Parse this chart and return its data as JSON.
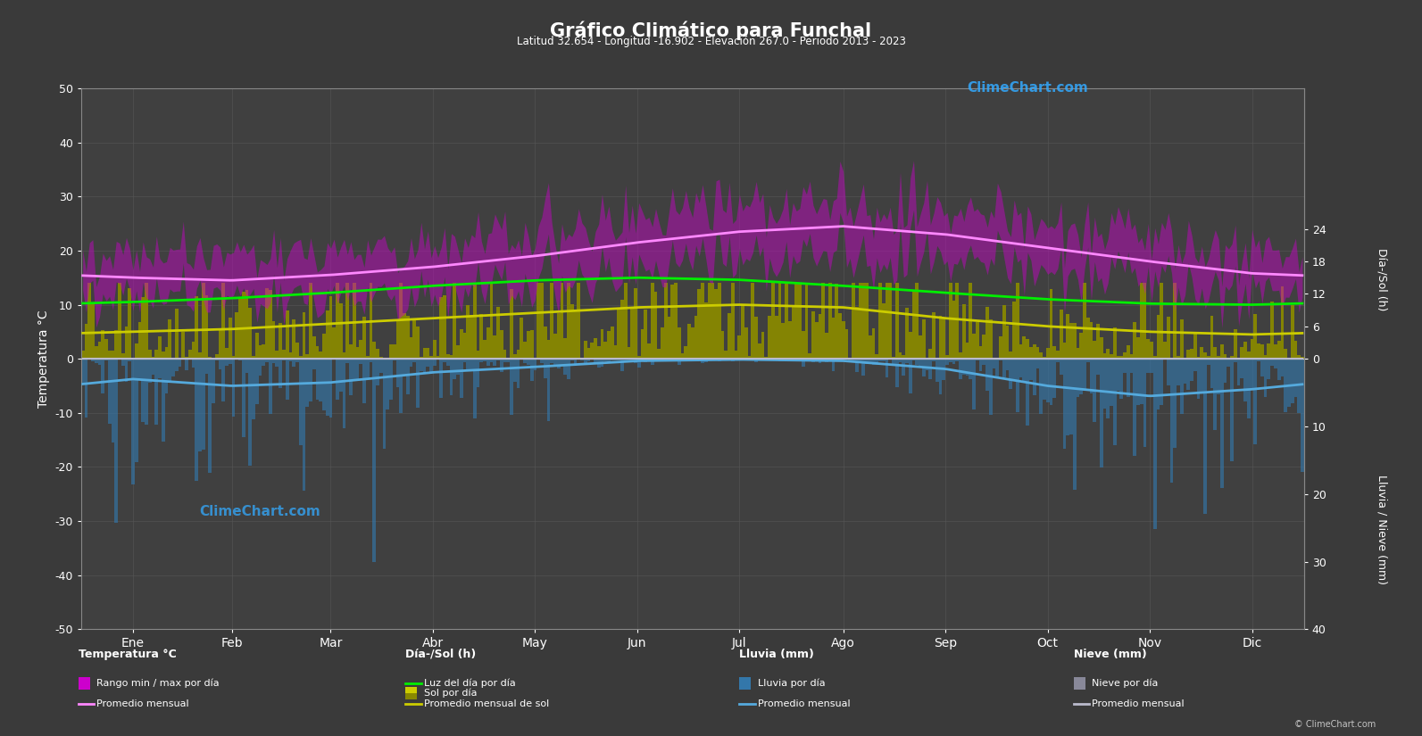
{
  "title": "Gráfico Climático para Funchal",
  "subtitle": "Latitud 32.654 - Longitud -16.902 - Elevación 267.0 - Periodo 2013 - 2023",
  "months": [
    "Ene",
    "Feb",
    "Mar",
    "Abr",
    "May",
    "Jun",
    "Jul",
    "Ago",
    "Sep",
    "Oct",
    "Nov",
    "Dic"
  ],
  "days_per_month": [
    31,
    28,
    31,
    30,
    31,
    30,
    31,
    31,
    30,
    31,
    30,
    31
  ],
  "temp_min_monthly": [
    13.5,
    13.0,
    13.5,
    14.5,
    16.0,
    18.5,
    20.5,
    21.5,
    20.5,
    18.5,
    16.0,
    14.0
  ],
  "temp_max_monthly": [
    17.0,
    17.0,
    18.0,
    19.5,
    21.5,
    24.0,
    26.5,
    27.0,
    25.5,
    23.0,
    20.0,
    17.5
  ],
  "temp_avg_monthly": [
    15.0,
    14.5,
    15.5,
    17.0,
    19.0,
    21.5,
    23.5,
    24.5,
    23.0,
    20.5,
    18.0,
    15.8
  ],
  "daylight_monthly": [
    10.5,
    11.2,
    12.2,
    13.5,
    14.5,
    15.0,
    14.6,
    13.5,
    12.2,
    11.0,
    10.2,
    10.0
  ],
  "sunshine_monthly": [
    5.0,
    5.5,
    6.5,
    7.5,
    8.5,
    9.5,
    10.0,
    9.5,
    7.5,
    6.0,
    5.0,
    4.5
  ],
  "rain_monthly_mm": [
    3.0,
    4.0,
    3.5,
    2.0,
    1.2,
    0.3,
    0.1,
    0.3,
    1.5,
    4.0,
    5.5,
    4.5
  ],
  "snow_monthly_mm": [
    0,
    0,
    0,
    0,
    0,
    0,
    0,
    0,
    0,
    0,
    0,
    0
  ],
  "background_color": "#3a3a3a",
  "plot_bg_color": "#404040",
  "grid_color": "#5a5a5a",
  "text_color": "#ffffff",
  "temp_ylim_lo": -50,
  "temp_ylim_hi": 50,
  "daylight_line_color": "#00ee00",
  "sunshine_fill_color": "#888800",
  "sunshine_line_color": "#cccc00",
  "rain_bar_color": "#3377aa",
  "rain_line_color": "#55aadd",
  "temp_range_fill_color": "#cc00cc",
  "temp_avg_line_color": "#ff88ff",
  "snow_bar_color": "#888899",
  "snow_line_color": "#bbbbcc",
  "watermark_color": "#33aaff"
}
